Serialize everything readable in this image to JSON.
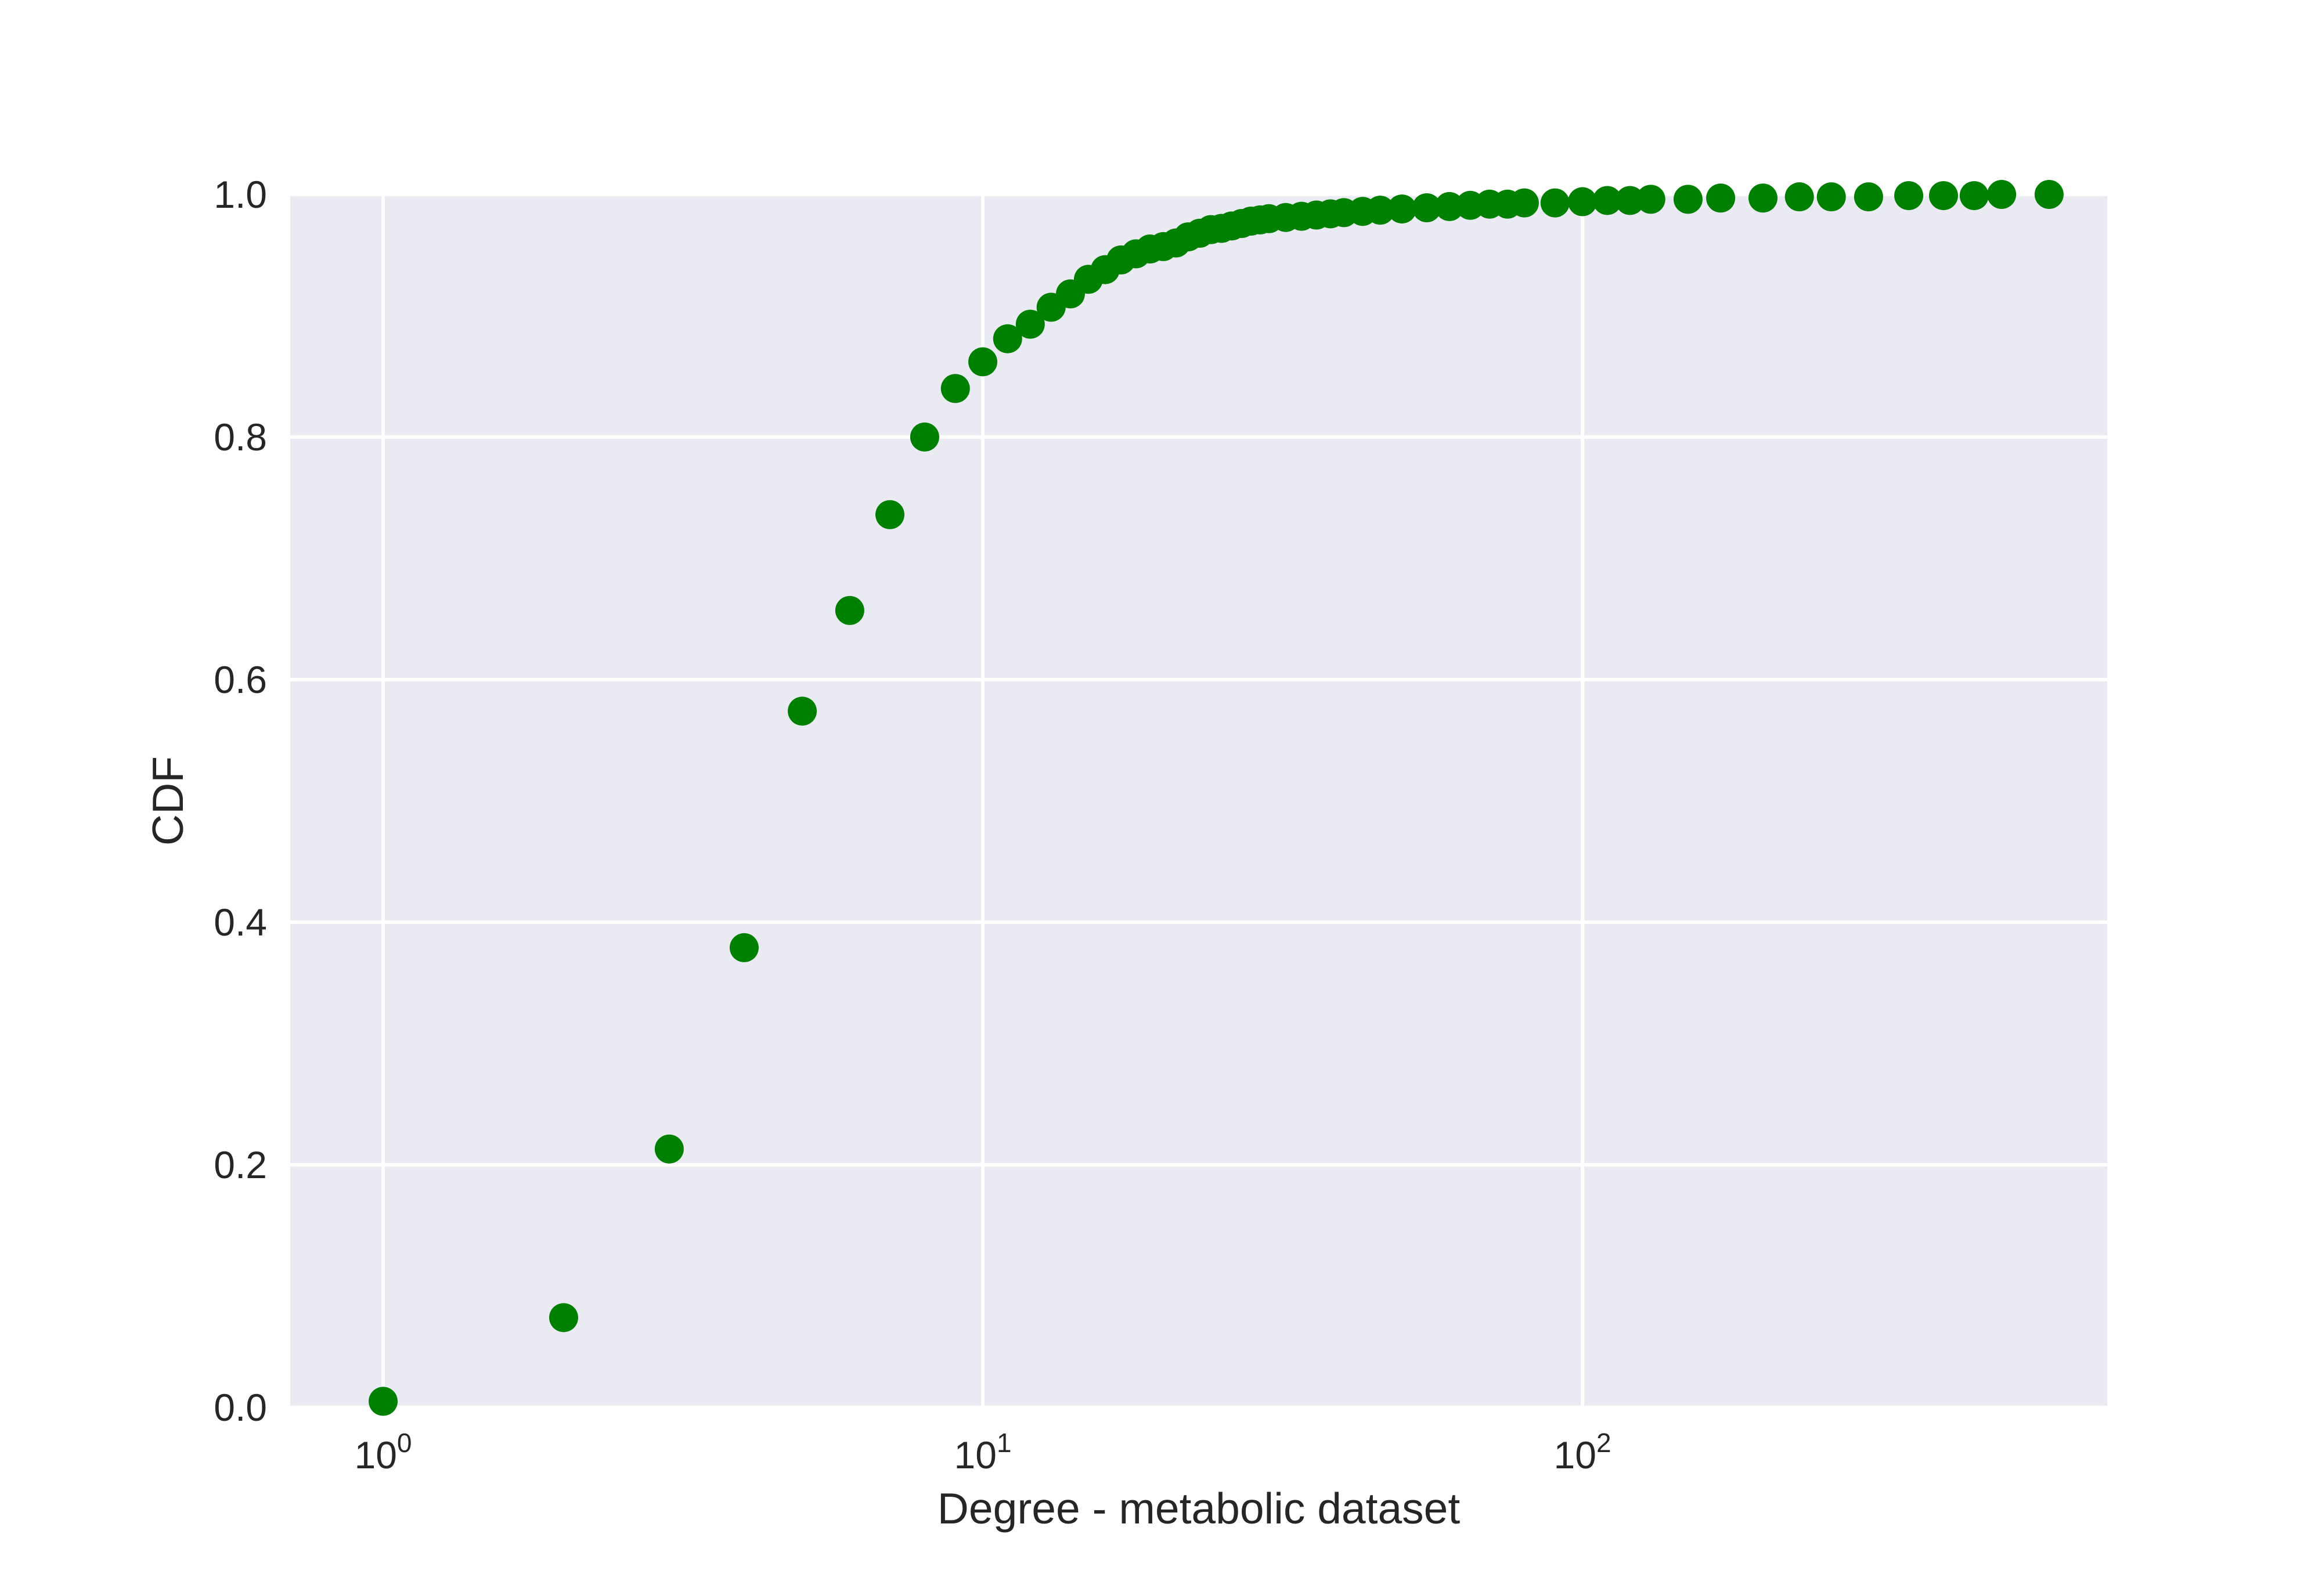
{
  "chart_data": {
    "type": "scatter",
    "title": "",
    "xlabel": "Degree - metabolic dataset",
    "ylabel": "CDF",
    "x_scale": "log",
    "xlim": [
      0.7,
      750
    ],
    "ylim": [
      0.0,
      1.0
    ],
    "grid": true,
    "colors": {
      "background": "#eaeaf2",
      "grid": "#ffffff",
      "marker": "#008000",
      "text": "#262626"
    },
    "x_ticks": [
      {
        "value": 1,
        "base": "10",
        "exp": "0"
      },
      {
        "value": 10,
        "base": "10",
        "exp": "1"
      },
      {
        "value": 100,
        "base": "10",
        "exp": "2"
      }
    ],
    "y_ticks": [
      {
        "value": 0.0,
        "label": "0.0"
      },
      {
        "value": 0.2,
        "label": "0.2"
      },
      {
        "value": 0.4,
        "label": "0.4"
      },
      {
        "value": 0.6,
        "label": "0.6"
      },
      {
        "value": 0.8,
        "label": "0.8"
      },
      {
        "value": 1.0,
        "label": "1.0"
      }
    ],
    "series": [
      {
        "x": [
          1,
          2,
          3,
          4,
          5,
          6,
          7,
          8,
          9,
          10,
          11,
          12,
          13,
          14,
          15,
          16,
          17,
          18,
          19,
          20,
          21,
          22,
          23,
          24,
          25,
          26,
          27,
          28,
          29,
          30,
          32,
          34,
          36,
          38,
          40,
          43,
          46,
          50,
          55,
          60,
          65,
          70,
          75,
          80,
          90,
          100,
          110,
          120,
          130,
          150,
          170,
          200,
          230,
          260,
          300,
          350,
          400,
          450,
          500,
          600
        ],
        "y": [
          0.005,
          0.074,
          0.213,
          0.379,
          0.574,
          0.657,
          0.736,
          0.8,
          0.84,
          0.862,
          0.881,
          0.893,
          0.907,
          0.918,
          0.93,
          0.938,
          0.946,
          0.951,
          0.955,
          0.957,
          0.96,
          0.965,
          0.968,
          0.971,
          0.972,
          0.974,
          0.976,
          0.978,
          0.979,
          0.98,
          0.981,
          0.982,
          0.983,
          0.984,
          0.985,
          0.986,
          0.987,
          0.988,
          0.989,
          0.99,
          0.991,
          0.992,
          0.992,
          0.993,
          0.993,
          0.994,
          0.995,
          0.995,
          0.996,
          0.996,
          0.997,
          0.997,
          0.998,
          0.998,
          0.998,
          0.999,
          0.999,
          0.999,
          1.0,
          1.0
        ]
      }
    ]
  }
}
